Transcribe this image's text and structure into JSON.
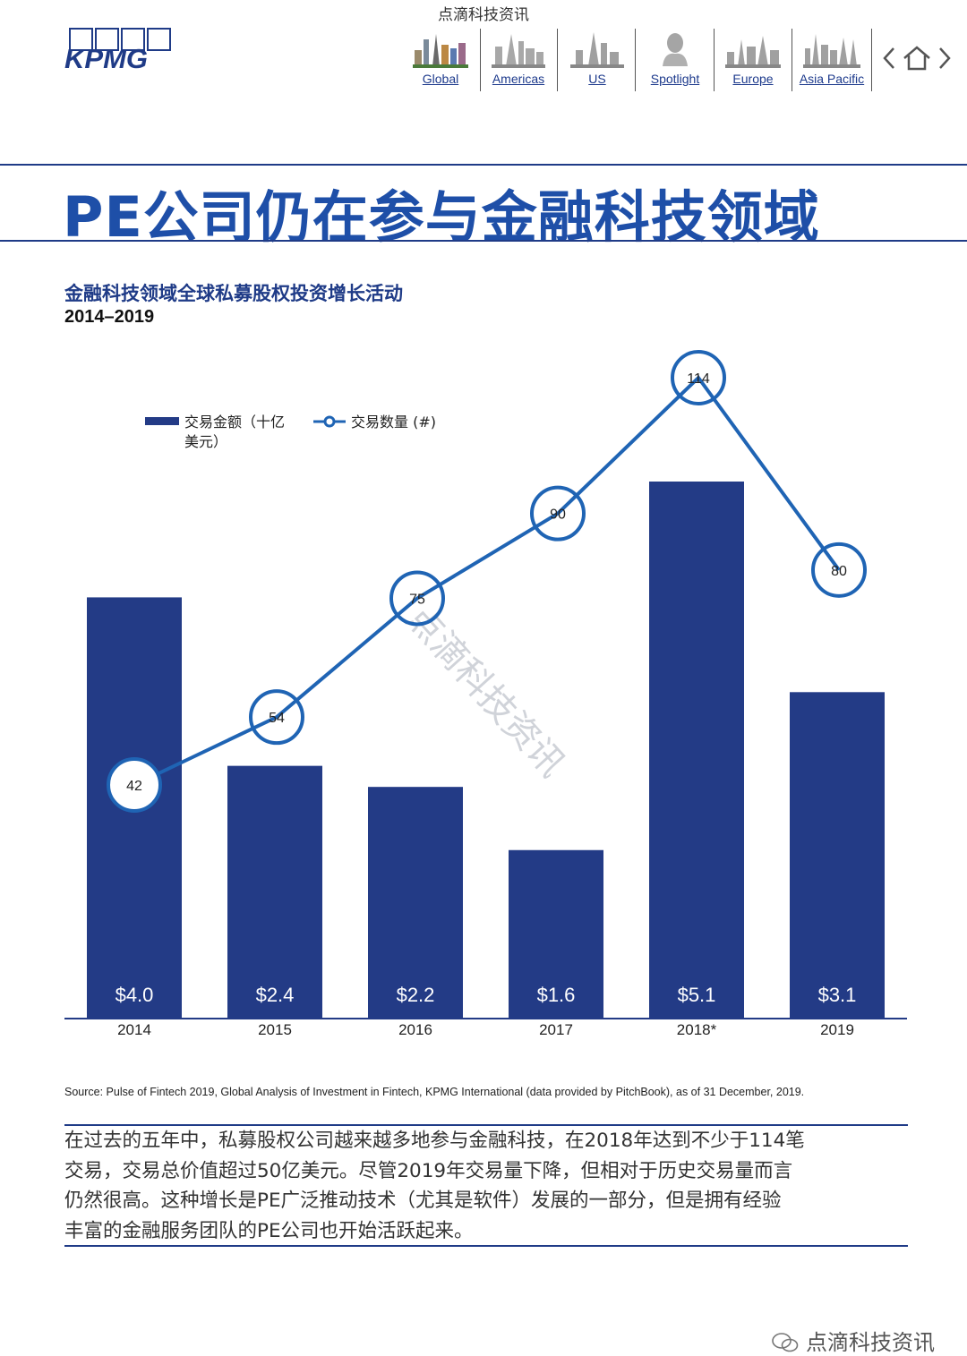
{
  "watermark_top": "点滴科技资讯",
  "brand": {
    "logo_text": "KPMG"
  },
  "nav": {
    "items": [
      {
        "label": "Global"
      },
      {
        "label": "Americas"
      },
      {
        "label": "US"
      },
      {
        "label": "Spotlight"
      },
      {
        "label": "Europe"
      },
      {
        "label": "Asia Pacific"
      }
    ],
    "icons": [
      "back-chevron-icon",
      "home-icon",
      "forward-chevron-icon"
    ]
  },
  "page_title": "PE公司仍在参与金融科技领域",
  "chart_data": {
    "type": "bar",
    "title": "金融科技领域全球私募股权投资增长活动",
    "subtitle": "2014–2019",
    "categories": [
      "2014",
      "2015",
      "2016",
      "2017",
      "2018*",
      "2019"
    ],
    "series": [
      {
        "name": "交易金额（十亿美元）",
        "type": "bar",
        "values": [
          4.0,
          2.4,
          2.2,
          1.6,
          5.1,
          3.1
        ],
        "labels": [
          "$4.0",
          "$2.4",
          "$2.2",
          "$1.6",
          "$5.1",
          "$3.1"
        ],
        "color": "#233b86"
      },
      {
        "name": "交易数量 (#)",
        "type": "line",
        "values": [
          42,
          54,
          75,
          90,
          114,
          80
        ],
        "color": "#1f64b4"
      }
    ],
    "legend": {
      "placement": "top-left",
      "bar_label": [
        "交易金额（十亿",
        "美元）"
      ],
      "line_label": "交易数量 (#)"
    },
    "grid": false
  },
  "chart_watermark": "点滴科技资讯",
  "source": "Source: Pulse of Fintech 2019, Global Analysis of Investment in Fintech, KPMG International (data provided by PitchBook), as of 31 December, 2019.",
  "body_lines": [
    "在过去的五年中，私募股权公司越来越多地参与金融科技，在2018年达到不少于114笔",
    "交易，交易总价值超过50亿美元。尽管2019年交易量下降，但相对于历史交易量而言",
    "仍然很高。这种增长是PE广泛推动技术（尤其是软件）发展的一部分，但是拥有经验",
    "丰富的金融服务团队的PE公司也开始活跃起来。"
  ],
  "watermark_bottom": "点滴科技资讯",
  "colors": {
    "navy": "#233b86",
    "line_blue": "#1f64b4",
    "title_blue": "#1e4fa8"
  }
}
